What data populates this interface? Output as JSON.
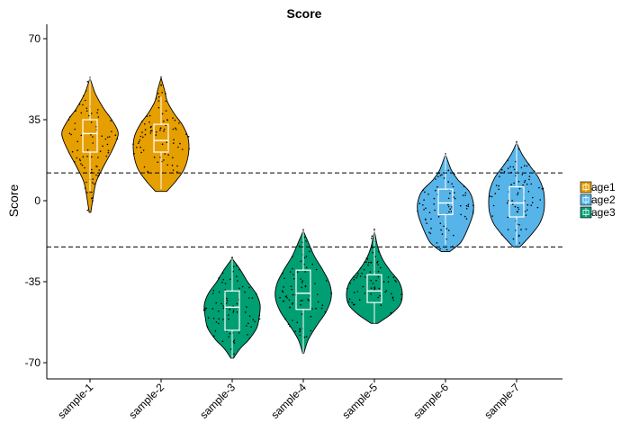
{
  "chart_data": {
    "type": "violin",
    "title": "Score",
    "xlabel": "",
    "ylabel": "Score",
    "ylim": [
      -77,
      77
    ],
    "yticks": [
      70,
      35,
      0,
      -35,
      -70
    ],
    "categories": [
      "sample-1",
      "sample-2",
      "sample-3",
      "sample-4",
      "sample-5",
      "sample-6",
      "sample-7"
    ],
    "groups": [
      "age1",
      "age1",
      "age3",
      "age3",
      "age3",
      "age2",
      "age2"
    ],
    "legend": {
      "position": "right",
      "entries": [
        {
          "label": "age1",
          "color": "#E69F00"
        },
        {
          "label": "age2",
          "color": "#56B4E9"
        },
        {
          "label": "age3",
          "color": "#009E73"
        }
      ]
    },
    "reference_lines": [
      12,
      -20
    ],
    "violins": [
      {
        "category": "sample-1",
        "min": -5,
        "max": 53,
        "q1": 21,
        "median": 29,
        "q3": 35,
        "whisker_low": 4,
        "whisker_high": 53,
        "density": [
          [
            -5,
            0.03
          ],
          [
            2,
            0.12
          ],
          [
            8,
            0.22
          ],
          [
            14,
            0.45
          ],
          [
            20,
            0.72
          ],
          [
            26,
            0.95
          ],
          [
            30,
            1.0
          ],
          [
            35,
            0.78
          ],
          [
            40,
            0.48
          ],
          [
            46,
            0.2
          ],
          [
            50,
            0.08
          ],
          [
            53,
            0.0
          ]
        ]
      },
      {
        "category": "sample-2",
        "min": 4,
        "max": 53,
        "q1": 21,
        "median": 26,
        "q3": 33,
        "whisker_low": 5,
        "whisker_high": 45,
        "density": [
          [
            4,
            0.2
          ],
          [
            8,
            0.5
          ],
          [
            13,
            0.8
          ],
          [
            18,
            0.95
          ],
          [
            23,
            1.0
          ],
          [
            28,
            0.95
          ],
          [
            33,
            0.75
          ],
          [
            38,
            0.45
          ],
          [
            43,
            0.22
          ],
          [
            48,
            0.12
          ],
          [
            53,
            0.0
          ]
        ]
      },
      {
        "category": "sample-3",
        "min": -68,
        "max": -25,
        "q1": -56,
        "median": -46,
        "q3": -39,
        "whisker_low": -68,
        "whisker_high": -25,
        "density": [
          [
            -68,
            0.05
          ],
          [
            -64,
            0.28
          ],
          [
            -60,
            0.6
          ],
          [
            -55,
            0.88
          ],
          [
            -50,
            0.97
          ],
          [
            -45,
            1.0
          ],
          [
            -40,
            0.85
          ],
          [
            -35,
            0.55
          ],
          [
            -30,
            0.3
          ],
          [
            -25,
            0.0
          ]
        ]
      },
      {
        "category": "sample-4",
        "min": -66,
        "max": -13,
        "q1": -47,
        "median": -40,
        "q3": -30,
        "whisker_low": -66,
        "whisker_high": -13,
        "density": [
          [
            -66,
            0.02
          ],
          [
            -60,
            0.18
          ],
          [
            -54,
            0.48
          ],
          [
            -48,
            0.82
          ],
          [
            -42,
            1.0
          ],
          [
            -36,
            0.95
          ],
          [
            -30,
            0.7
          ],
          [
            -24,
            0.4
          ],
          [
            -18,
            0.18
          ],
          [
            -13,
            0.0
          ]
        ]
      },
      {
        "category": "sample-5",
        "min": -53,
        "max": -13,
        "q1": -44,
        "median": -39,
        "q3": -32,
        "whisker_low": -53,
        "whisker_high": -13,
        "density": [
          [
            -53,
            0.12
          ],
          [
            -49,
            0.6
          ],
          [
            -45,
            0.92
          ],
          [
            -40,
            1.0
          ],
          [
            -35,
            0.88
          ],
          [
            -30,
            0.55
          ],
          [
            -25,
            0.28
          ],
          [
            -20,
            0.12
          ],
          [
            -13,
            0.0
          ]
        ]
      },
      {
        "category": "sample-6",
        "min": -22,
        "max": 20,
        "q1": -6,
        "median": -1,
        "q3": 5,
        "whisker_low": -19,
        "whisker_high": 20,
        "density": [
          [
            -22,
            0.15
          ],
          [
            -18,
            0.55
          ],
          [
            -12,
            0.8
          ],
          [
            -6,
            0.98
          ],
          [
            -1,
            1.0
          ],
          [
            4,
            0.85
          ],
          [
            9,
            0.45
          ],
          [
            13,
            0.22
          ],
          [
            16,
            0.12
          ],
          [
            20,
            0.0
          ]
        ]
      },
      {
        "category": "sample-7",
        "min": -20,
        "max": 25,
        "q1": -7,
        "median": -1,
        "q3": 6,
        "whisker_low": -19,
        "whisker_high": 25,
        "density": [
          [
            -20,
            0.12
          ],
          [
            -15,
            0.5
          ],
          [
            -10,
            0.82
          ],
          [
            -5,
            0.97
          ],
          [
            0,
            1.0
          ],
          [
            5,
            0.95
          ],
          [
            10,
            0.78
          ],
          [
            15,
            0.48
          ],
          [
            20,
            0.2
          ],
          [
            25,
            0.0
          ]
        ]
      }
    ]
  }
}
